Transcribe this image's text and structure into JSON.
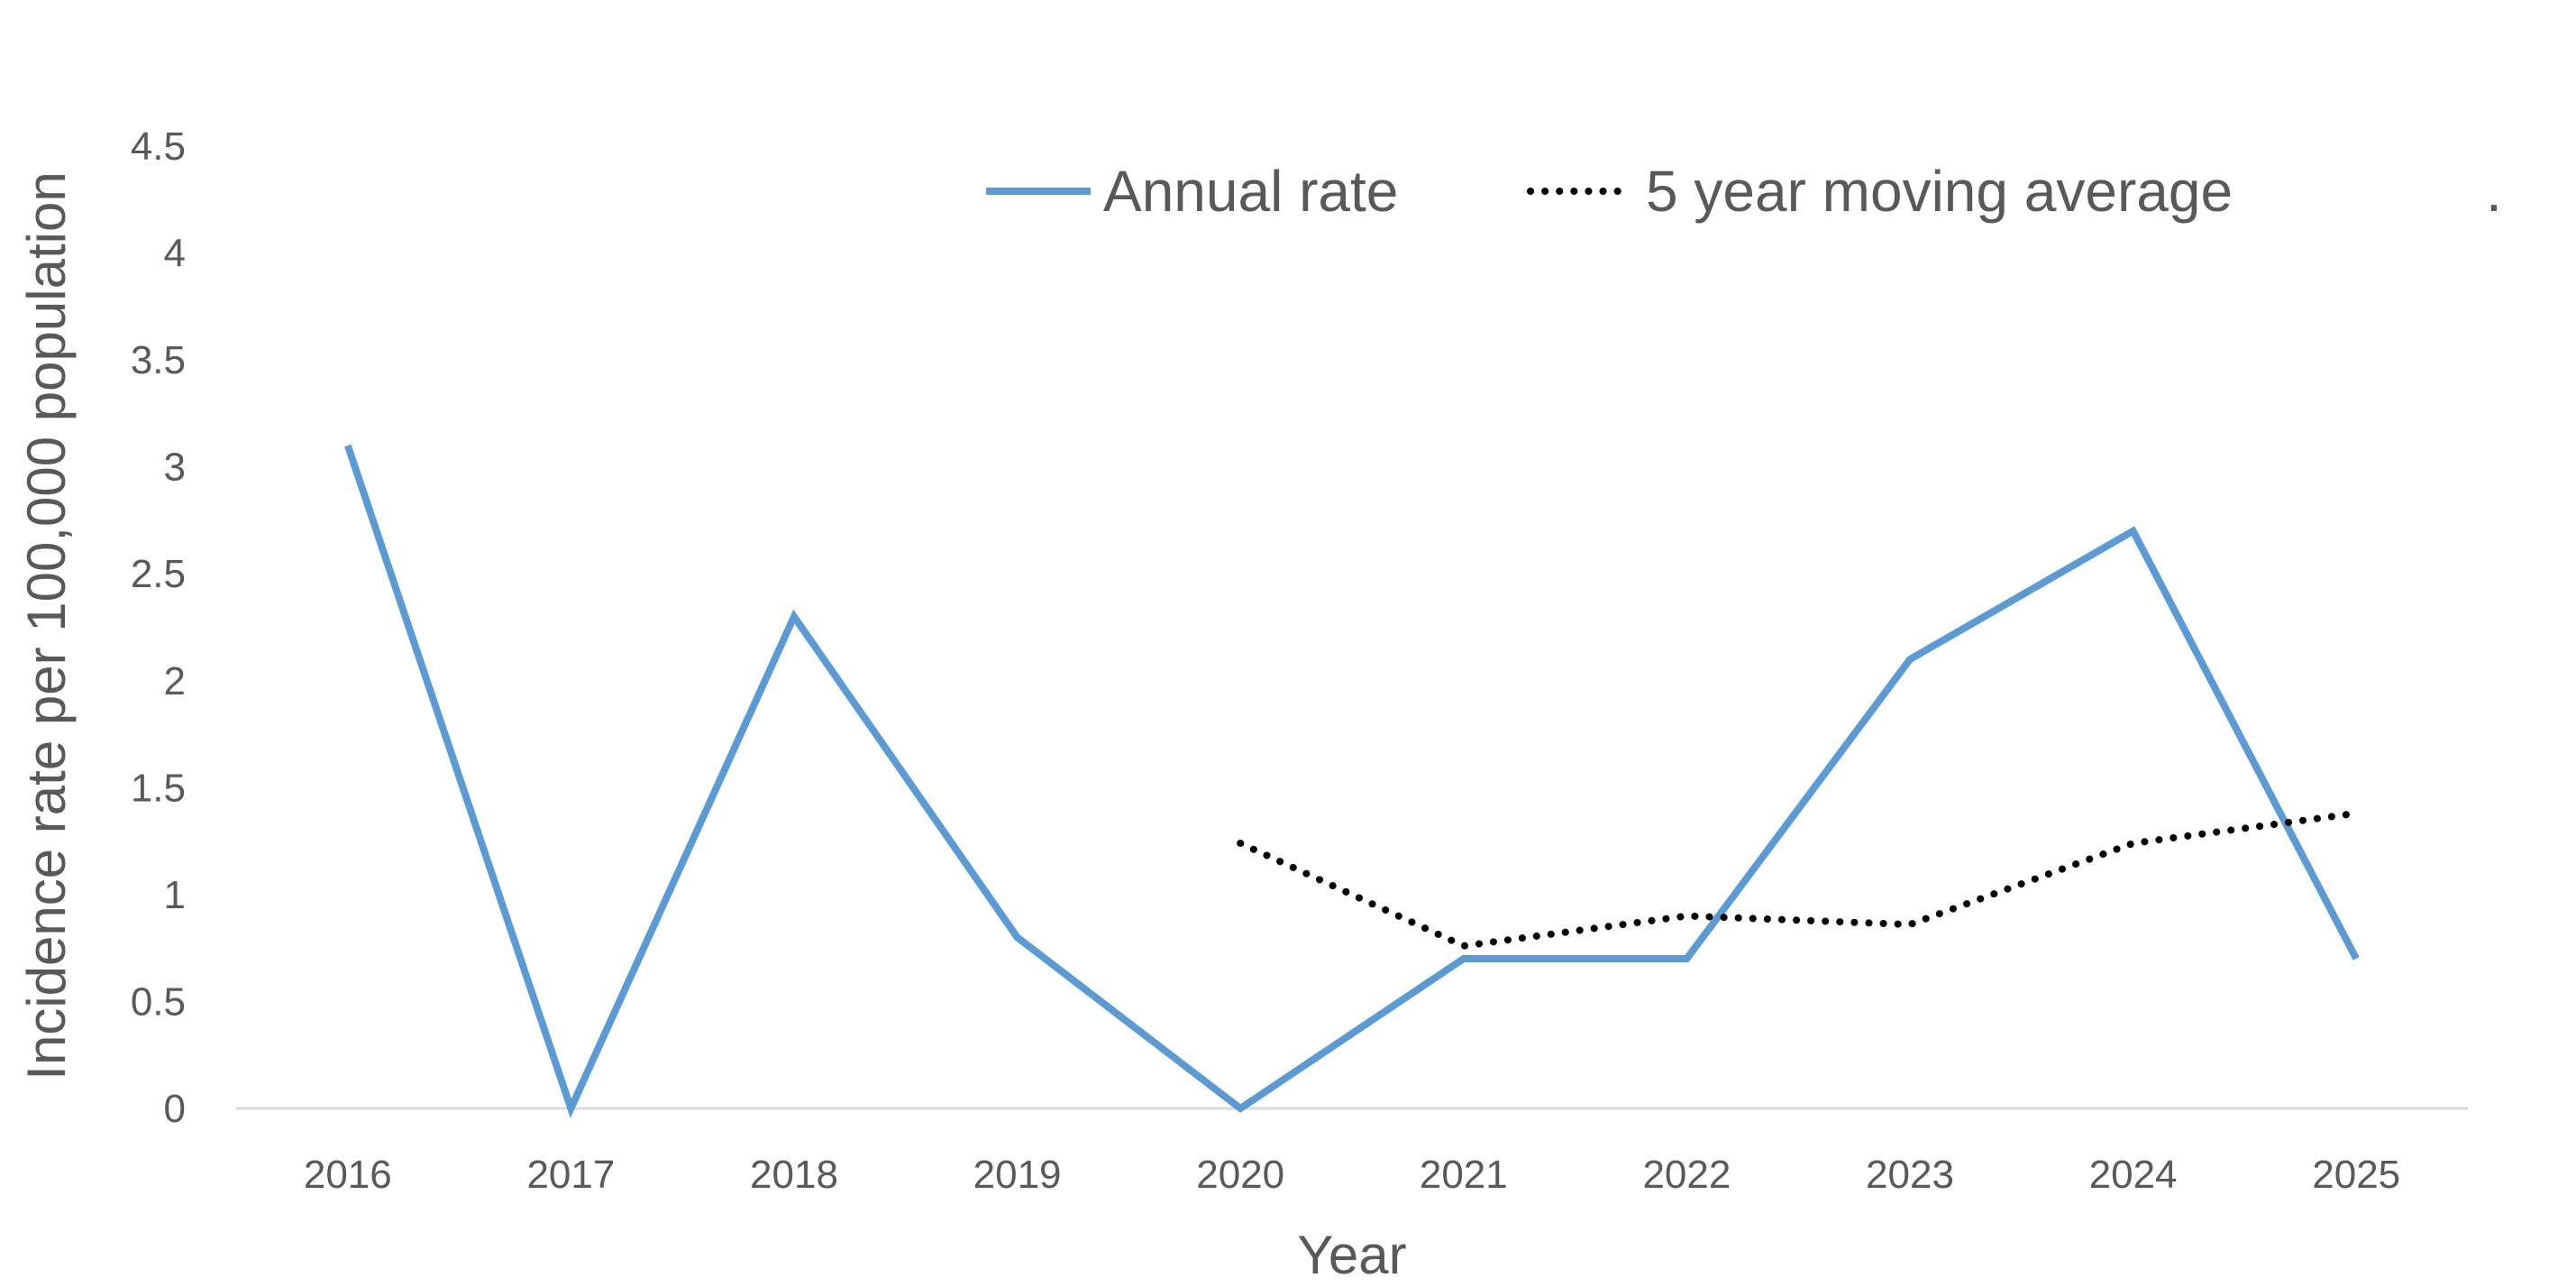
{
  "chart_data": {
    "type": "line",
    "xlabel": "Year",
    "ylabel": "Incidence rate per 100,000 population",
    "x": [
      "2016",
      "2017",
      "2018",
      "2019",
      "2020",
      "2021",
      "2022",
      "2023",
      "2024",
      "2025"
    ],
    "ylim": [
      0,
      4.5
    ],
    "yticks": [
      "0",
      "0.5",
      "1",
      "1.5",
      "2",
      "2.5",
      "3",
      "3.5",
      "4",
      "4.5"
    ],
    "grid": false,
    "legend_position": "top",
    "legend_extra": ".",
    "series": [
      {
        "name": "Annual rate",
        "style": "solid",
        "color": "#5B9BD5",
        "values": [
          3.1,
          0,
          2.3,
          0.8,
          0,
          0.7,
          0.7,
          2.1,
          2.7,
          0.7
        ]
      },
      {
        "name": "5 year moving average",
        "style": "dotted",
        "color": "#000000",
        "values": [
          null,
          null,
          null,
          null,
          1.24,
          0.76,
          0.9,
          0.86,
          1.24,
          1.38
        ]
      }
    ]
  }
}
